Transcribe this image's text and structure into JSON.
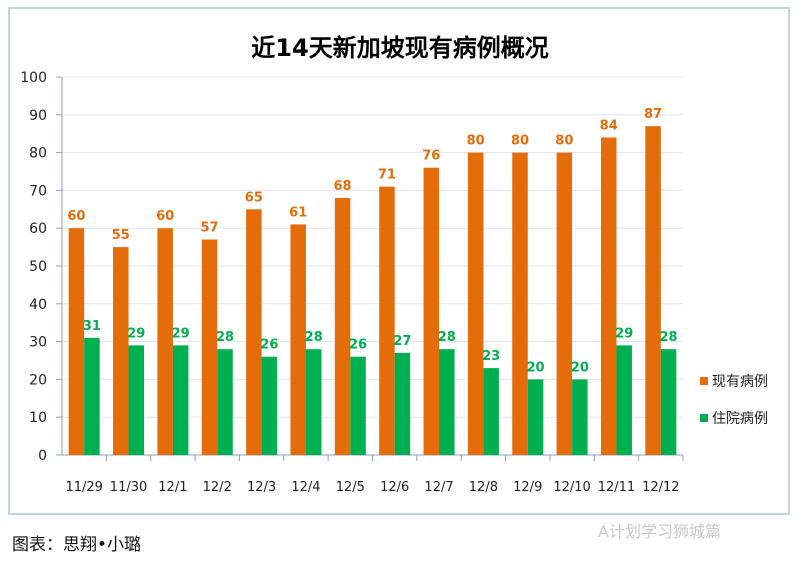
{
  "chart_data": {
    "type": "bar",
    "title": "近14天新加坡现有病例概况",
    "categories": [
      "11/29",
      "11/30",
      "12/1",
      "12/2",
      "12/3",
      "12/4",
      "12/5",
      "12/6",
      "12/7",
      "12/8",
      "12/9",
      "12/10",
      "12/11",
      "12/12"
    ],
    "series": [
      {
        "name": "现有病例",
        "color": "#e46c0a",
        "values": [
          60,
          55,
          60,
          57,
          65,
          61,
          68,
          71,
          76,
          80,
          80,
          80,
          84,
          87
        ]
      },
      {
        "name": "住院病例",
        "color": "#00b050",
        "values": [
          31,
          29,
          29,
          28,
          26,
          28,
          26,
          27,
          28,
          23,
          20,
          20,
          29,
          28
        ]
      }
    ],
    "ylim": [
      0,
      100
    ],
    "yticks": [
      0,
      10,
      20,
      30,
      40,
      50,
      60,
      70,
      80,
      90,
      100
    ],
    "grid": true,
    "legend": "right"
  },
  "caption": "图表：思翔•小璐",
  "watermark": "A计划学习狮城篇"
}
